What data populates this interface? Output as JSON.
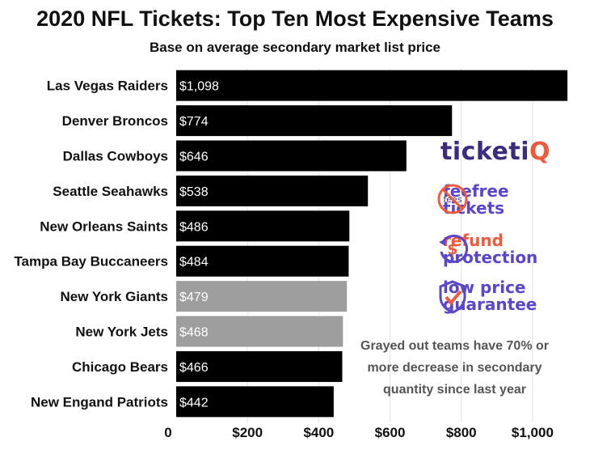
{
  "title": "2020 NFL Tickets: Top Ten Most Expensive Teams",
  "subtitle": "Base on average secondary market list price",
  "note": "Grayed out teams have 70% or more decrease in secondary quantity since last year",
  "brand": {
    "main": "ticketi",
    "accent": "Q"
  },
  "promos": [
    {
      "line1": "feefree",
      "line2": "tickets",
      "icon": "no-fees-icon",
      "icon_text": "fees",
      "color": "#5b46c9"
    },
    {
      "line1": "refund",
      "line2": "protection",
      "icon": "dollar-refund-icon",
      "icon_text": "$",
      "color": "#ef5a3c"
    },
    {
      "line1": "low price",
      "line2": "guarantee",
      "icon": "shield-check-icon",
      "icon_text": "",
      "color": "#5b46c9"
    }
  ],
  "colors": {
    "bar": "#000000",
    "bar_gray": "#9e9e9e",
    "brand_purple": "#3d2b80",
    "brand_orange": "#ef5a3c"
  },
  "chart_data": {
    "type": "bar",
    "orientation": "horizontal",
    "categories": [
      "Las Vegas Raiders",
      "Denver Broncos",
      "Dallas Cowboys",
      "Seattle Seahawks",
      "New Orleans Saints",
      "Tampa Bay Buccaneers",
      "New York Giants",
      "New York Jets",
      "Chicago Bears",
      "New Engand Patriots"
    ],
    "values": [
      1098,
      774,
      646,
      538,
      486,
      484,
      479,
      468,
      466,
      442
    ],
    "value_labels": [
      "$1,098",
      "$774",
      "$646",
      "$538",
      "$486",
      "$484",
      "$479",
      "$468",
      "$466",
      "$442"
    ],
    "grayed": [
      false,
      false,
      false,
      false,
      false,
      false,
      true,
      true,
      false,
      false
    ],
    "xlim": [
      0,
      1100
    ],
    "x_ticks": [
      0,
      200,
      400,
      600,
      800,
      1000
    ],
    "x_tick_labels": [
      "0",
      "$200",
      "$400",
      "$600",
      "$800",
      "$1,000"
    ],
    "grid": true,
    "title": "2020 NFL Tickets: Top Ten Most Expensive Teams",
    "subtitle": "Base on average secondary market list price",
    "xlabel": "",
    "ylabel": ""
  }
}
